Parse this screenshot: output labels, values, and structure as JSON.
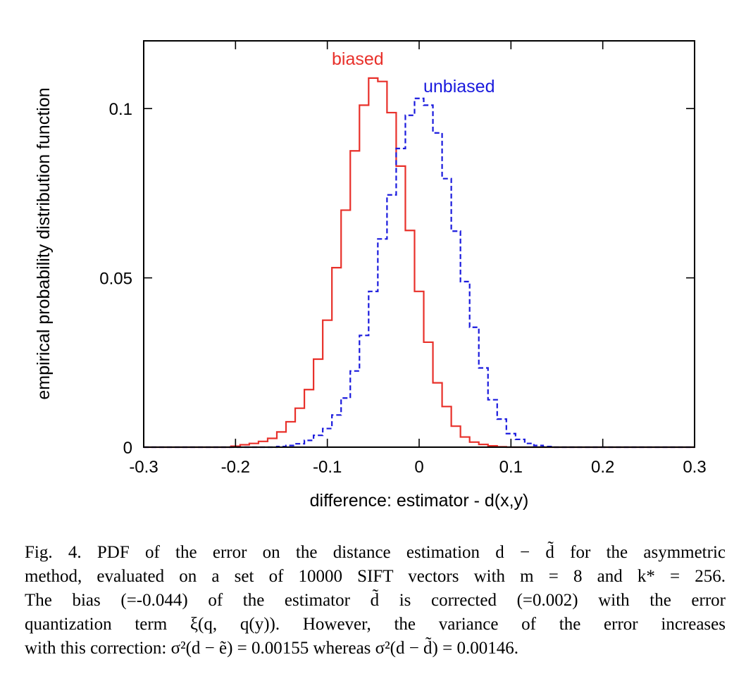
{
  "chart_data": {
    "type": "line",
    "style": "step histogram",
    "xlabel": "difference: estimator - d(x,y)",
    "ylabel": "empirical probability distribution function",
    "xlim": [
      -0.3,
      0.3
    ],
    "ylim": [
      0,
      0.12
    ],
    "xticks": [
      "-0.3",
      "-0.2",
      "-0.1",
      "0",
      "0.1",
      "0.2",
      "0.3"
    ],
    "yticks": [
      "0",
      "0.05",
      "0.1"
    ],
    "ytick_values": [
      0,
      0.05,
      0.1
    ],
    "grid": false,
    "legend": "inline labels near peaks",
    "series": [
      {
        "name": "biased",
        "color": "#e8302a",
        "dash": "solid",
        "x": [
          -0.2,
          -0.19,
          -0.18,
          -0.17,
          -0.16,
          -0.15,
          -0.14,
          -0.13,
          -0.12,
          -0.11,
          -0.1,
          -0.09,
          -0.08,
          -0.07,
          -0.06,
          -0.05,
          -0.04,
          -0.03,
          -0.02,
          -0.01,
          0.0,
          0.01,
          0.02,
          0.03,
          0.04,
          0.05,
          0.06,
          0.07,
          0.08,
          0.09
        ],
        "values": [
          0.0003,
          0.0007,
          0.0011,
          0.0017,
          0.0026,
          0.0045,
          0.0075,
          0.0115,
          0.017,
          0.026,
          0.0375,
          0.053,
          0.07,
          0.0875,
          0.101,
          0.109,
          0.108,
          0.0988,
          0.083,
          0.064,
          0.046,
          0.031,
          0.019,
          0.012,
          0.0062,
          0.003,
          0.0015,
          0.0008,
          0.0004,
          0.0001
        ]
      },
      {
        "name": "unbiased",
        "color": "#1a1add",
        "dash": "dashed",
        "x": [
          -0.15,
          -0.14,
          -0.13,
          -0.12,
          -0.11,
          -0.1,
          -0.09,
          -0.08,
          -0.07,
          -0.06,
          -0.05,
          -0.04,
          -0.03,
          -0.02,
          -0.01,
          0.0,
          0.01,
          0.02,
          0.03,
          0.04,
          0.05,
          0.06,
          0.07,
          0.08,
          0.09,
          0.1,
          0.11,
          0.12,
          0.13,
          0.14
        ],
        "values": [
          0.0002,
          0.0005,
          0.001,
          0.002,
          0.0035,
          0.0055,
          0.0095,
          0.0145,
          0.0225,
          0.033,
          0.046,
          0.0615,
          0.0745,
          0.0882,
          0.098,
          0.103,
          0.101,
          0.0928,
          0.0793,
          0.0638,
          0.0489,
          0.0354,
          0.0234,
          0.014,
          0.0083,
          0.004,
          0.0023,
          0.0011,
          0.0005,
          0.0002
        ]
      }
    ]
  },
  "caption": {
    "lines": [
      "Fig. 4.   PDF of the error on the distance estimation d − d̃ for the asymmetric",
      "method, evaluated on a set of 10000 SIFT vectors with m = 8 and k* = 256.",
      "The bias (=-0.044) of the estimator d̃ is corrected (=0.002) with the error",
      "quantization term ξ(q, q(y)). However, the variance of the error increases",
      "with this correction: σ²(d − ẽ) = 0.00155 whereas σ²(d − d̃) = 0.00146."
    ]
  }
}
